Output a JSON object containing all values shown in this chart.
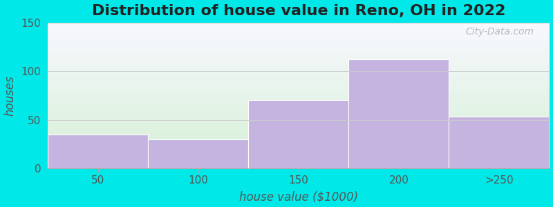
{
  "title": "Distribution of house value in Reno, OH in 2022",
  "xlabel": "house value ($1000)",
  "ylabel": "houses",
  "categories": [
    "50",
    "100",
    "150",
    "200",
    ">250"
  ],
  "values": [
    35,
    30,
    70,
    112,
    53
  ],
  "bar_color": "#c5b3e0",
  "ylim": [
    0,
    150
  ],
  "yticks": [
    0,
    50,
    100,
    150
  ],
  "background_color": "#00e8e8",
  "plot_bg_top": "#d6f0d6",
  "plot_bg_bottom": "#f8f8ff",
  "title_fontsize": 16,
  "axis_label_fontsize": 12,
  "tick_fontsize": 11,
  "watermark_text": "City-Data.com",
  "bar_width": 1.0,
  "figure_width": 8.0,
  "figure_height": 3.0,
  "dpi": 100
}
